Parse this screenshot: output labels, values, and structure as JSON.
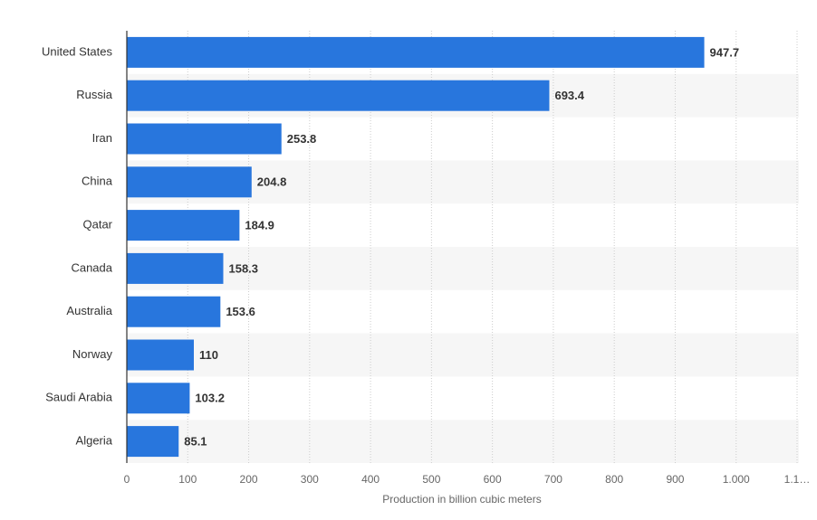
{
  "chart_data": {
    "type": "bar",
    "orientation": "horizontal",
    "x_axis_label": "Production in billion cubic meters",
    "categories": [
      "United States",
      "Russia",
      "Iran",
      "China",
      "Qatar",
      "Canada",
      "Australia",
      "Norway",
      "Saudi Arabia",
      "Algeria"
    ],
    "values": [
      947.7,
      693.4,
      253.8,
      204.8,
      184.9,
      158.3,
      153.6,
      110,
      103.2,
      85.1
    ],
    "color": "#2876dd",
    "xlim": [
      0,
      1100
    ],
    "xticks": [
      0,
      100,
      200,
      300,
      400,
      500,
      600,
      700,
      800,
      900,
      {
        "value": 1000,
        "label": "1.000"
      },
      {
        "value": 1100,
        "label": "1.1…"
      }
    ],
    "grid": true
  }
}
